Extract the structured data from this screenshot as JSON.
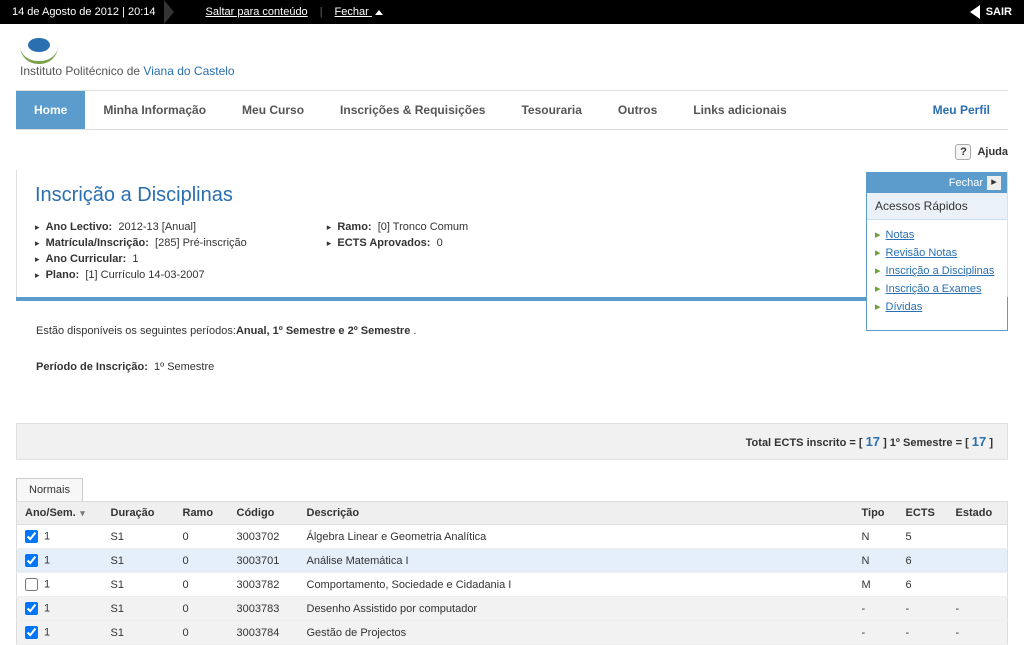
{
  "topbar": {
    "date_time": "14 de Agosto de 2012 | 20:14",
    "skip_link": "Saltar para conteúdo",
    "close_link": "Fechar",
    "logout": "SAIR"
  },
  "logo": {
    "inst": "Instituto Politécnico de ",
    "city": "Viana do Castelo"
  },
  "nav": {
    "home": "Home",
    "my_info": "Minha Informação",
    "my_course": "Meu Curso",
    "inscriptions": "Inscrições & Requisições",
    "treasury": "Tesouraria",
    "others": "Outros",
    "links": "Links adicionais",
    "profile": "Meu Perfil"
  },
  "help": {
    "label": "Ajuda"
  },
  "quick": {
    "close": "Fechar",
    "title": "Acessos Rápidos",
    "items": [
      "Notas",
      "Revisão Notas",
      "Inscrição a Disciplinas",
      "Inscrição a Exames",
      "Dívidas"
    ]
  },
  "page": {
    "title": "Inscrição a Disciplinas",
    "ano_lectivo_label": "Ano Lectivo:",
    "ano_lectivo_value": "2012-13 [Anual]",
    "matricula_label": "Matrícula/Inscrição:",
    "matricula_value": "[285] Pré-inscrição",
    "ano_curricular_label": "Ano Curricular:",
    "ano_curricular_value": "1",
    "plano_label": "Plano:",
    "plano_value": "[1] Currículo 14-03-2007",
    "ramo_label": "Ramo:",
    "ramo_value": "[0] Tronco Comum",
    "ects_aprov_label": "ECTS Aprovados:",
    "ects_aprov_value": "0"
  },
  "body": {
    "periodos_prefix": "Estão disponíveis os seguintes períodos:",
    "periodos_bold": "Anual, 1º Semestre e 2º Semestre",
    "periodo_inscricao_label": "Período de Inscrição:",
    "periodo_inscricao_value": "1º Semestre"
  },
  "ects_bar": {
    "prefix": "Total ECTS inscrito = [ ",
    "total": "17",
    "mid": " ] 1º Semestre = [ ",
    "sem": "17",
    "suffix": " ]"
  },
  "tabs": {
    "normais": "Normais"
  },
  "table": {
    "headers": {
      "ano_sem": "Ano/Sem.",
      "duracao": "Duração",
      "ramo": "Ramo",
      "codigo": "Código",
      "descricao": "Descrição",
      "tipo": "Tipo",
      "ects": "ECTS",
      "estado": "Estado"
    },
    "rows": [
      {
        "checked": true,
        "ano": "1",
        "dur": "S1",
        "ramo": "0",
        "cod": "3003702",
        "desc": "Álgebra Linear e Geometria Analítica",
        "tipo": "N",
        "ects": "5",
        "estado": "",
        "hl": false
      },
      {
        "checked": true,
        "ano": "1",
        "dur": "S1",
        "ramo": "0",
        "cod": "3003701",
        "desc": "Análise Matemática I",
        "tipo": "N",
        "ects": "6",
        "estado": "",
        "hl": true
      },
      {
        "checked": false,
        "ano": "1",
        "dur": "S1",
        "ramo": "0",
        "cod": "3003782",
        "desc": "Comportamento, Sociedade e Cidadania I",
        "tipo": "M",
        "ects": "6",
        "estado": "",
        "hl": false
      },
      {
        "checked": true,
        "ano": "1",
        "dur": "S1",
        "ramo": "0",
        "cod": "3003783",
        "desc": "Desenho Assistido por computador",
        "tipo": "-",
        "ects": "-",
        "estado": "-",
        "hl": false,
        "alt": true
      },
      {
        "checked": true,
        "ano": "1",
        "dur": "S1",
        "ramo": "0",
        "cod": "3003784",
        "desc": "Gestão de Projectos",
        "tipo": "-",
        "ects": "-",
        "estado": "-",
        "hl": false,
        "alt": true
      }
    ]
  }
}
